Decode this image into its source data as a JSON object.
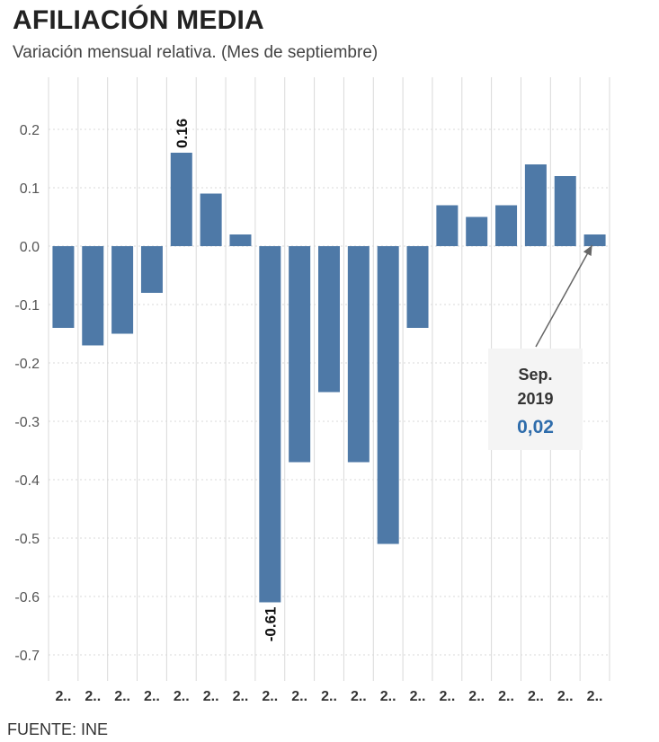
{
  "header": {
    "title": "AFILIACIÓN MEDIA",
    "subtitle": "Variación mensual relativa. (Mes de septiembre)"
  },
  "source": "FUENTE: INE",
  "colors": {
    "bar": "#4e79a7",
    "grid": "#d9d9d9",
    "tooltip_value": "#2e6cab"
  },
  "annotation": {
    "month": "Sep.",
    "year": "2019",
    "value": "0,02"
  },
  "chart_data": {
    "type": "bar",
    "title": "AFILIACIÓN MEDIA",
    "subtitle": "Variación mensual relativa. (Mes de septiembre)",
    "categories": [
      "2..",
      "2..",
      "2..",
      "2..",
      "2..",
      "2..",
      "2..",
      "2..",
      "2..",
      "2..",
      "2..",
      "2..",
      "2..",
      "2..",
      "2..",
      "2..",
      "2..",
      "2..",
      "2.."
    ],
    "values": [
      -0.14,
      -0.17,
      -0.15,
      -0.08,
      0.16,
      0.09,
      0.02,
      -0.61,
      -0.37,
      -0.25,
      -0.37,
      -0.51,
      -0.14,
      0.07,
      0.05,
      0.07,
      0.14,
      0.12,
      0.02
    ],
    "ylim": [
      -0.76,
      0.28
    ],
    "yticks": [
      0.2,
      0.1,
      0.0,
      -0.1,
      -0.2,
      -0.3,
      -0.4,
      -0.5,
      -0.6,
      -0.7
    ],
    "ytick_labels": [
      "0.2",
      "0.1",
      "0.0",
      "-0.1",
      "-0.2",
      "-0.3",
      "-0.4",
      "-0.5",
      "-0.6",
      "-0.7"
    ],
    "data_labels": [
      {
        "index": 4,
        "text": "0.16"
      },
      {
        "index": 7,
        "text": "-0.61"
      }
    ],
    "grid": true,
    "xlabel": "",
    "ylabel": ""
  }
}
